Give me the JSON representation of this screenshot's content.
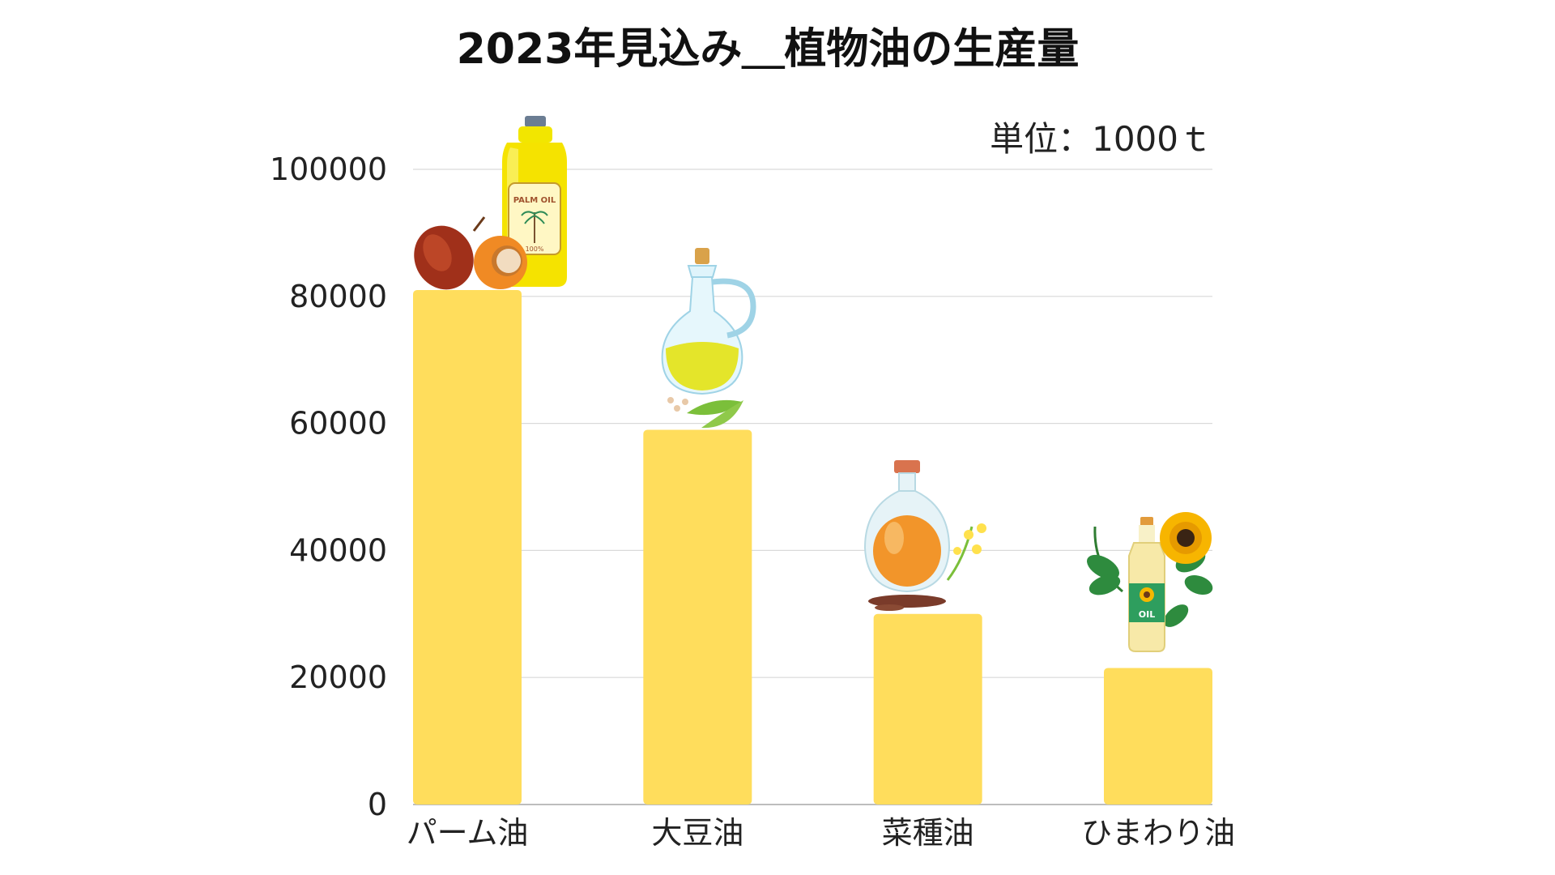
{
  "chart_data": {
    "type": "bar",
    "title": "2023年見込み＿植物油の生産量",
    "unit_note": "単位：1000ｔ",
    "categories": [
      "パーム油",
      "大豆油",
      "菜種油",
      "ひまわり油"
    ],
    "values": [
      81000,
      59000,
      30000,
      21500
    ],
    "ylim": [
      0,
      100000
    ],
    "yticks": [
      "0",
      "20000",
      "40000",
      "60000",
      "80000",
      "100000"
    ],
    "grid": true,
    "bar_color": "#FFDD5C",
    "grid_color": "#d9d9d9",
    "axis_color": "#bdbdbd",
    "illustrations": [
      "palm-oil-bottle-icon",
      "soybean-oil-jug-icon",
      "rapeseed-oil-bottle-icon",
      "sunflower-oil-bottle-icon"
    ],
    "bottle_label_text": [
      "PALM OIL",
      "100%",
      "OIL"
    ]
  }
}
